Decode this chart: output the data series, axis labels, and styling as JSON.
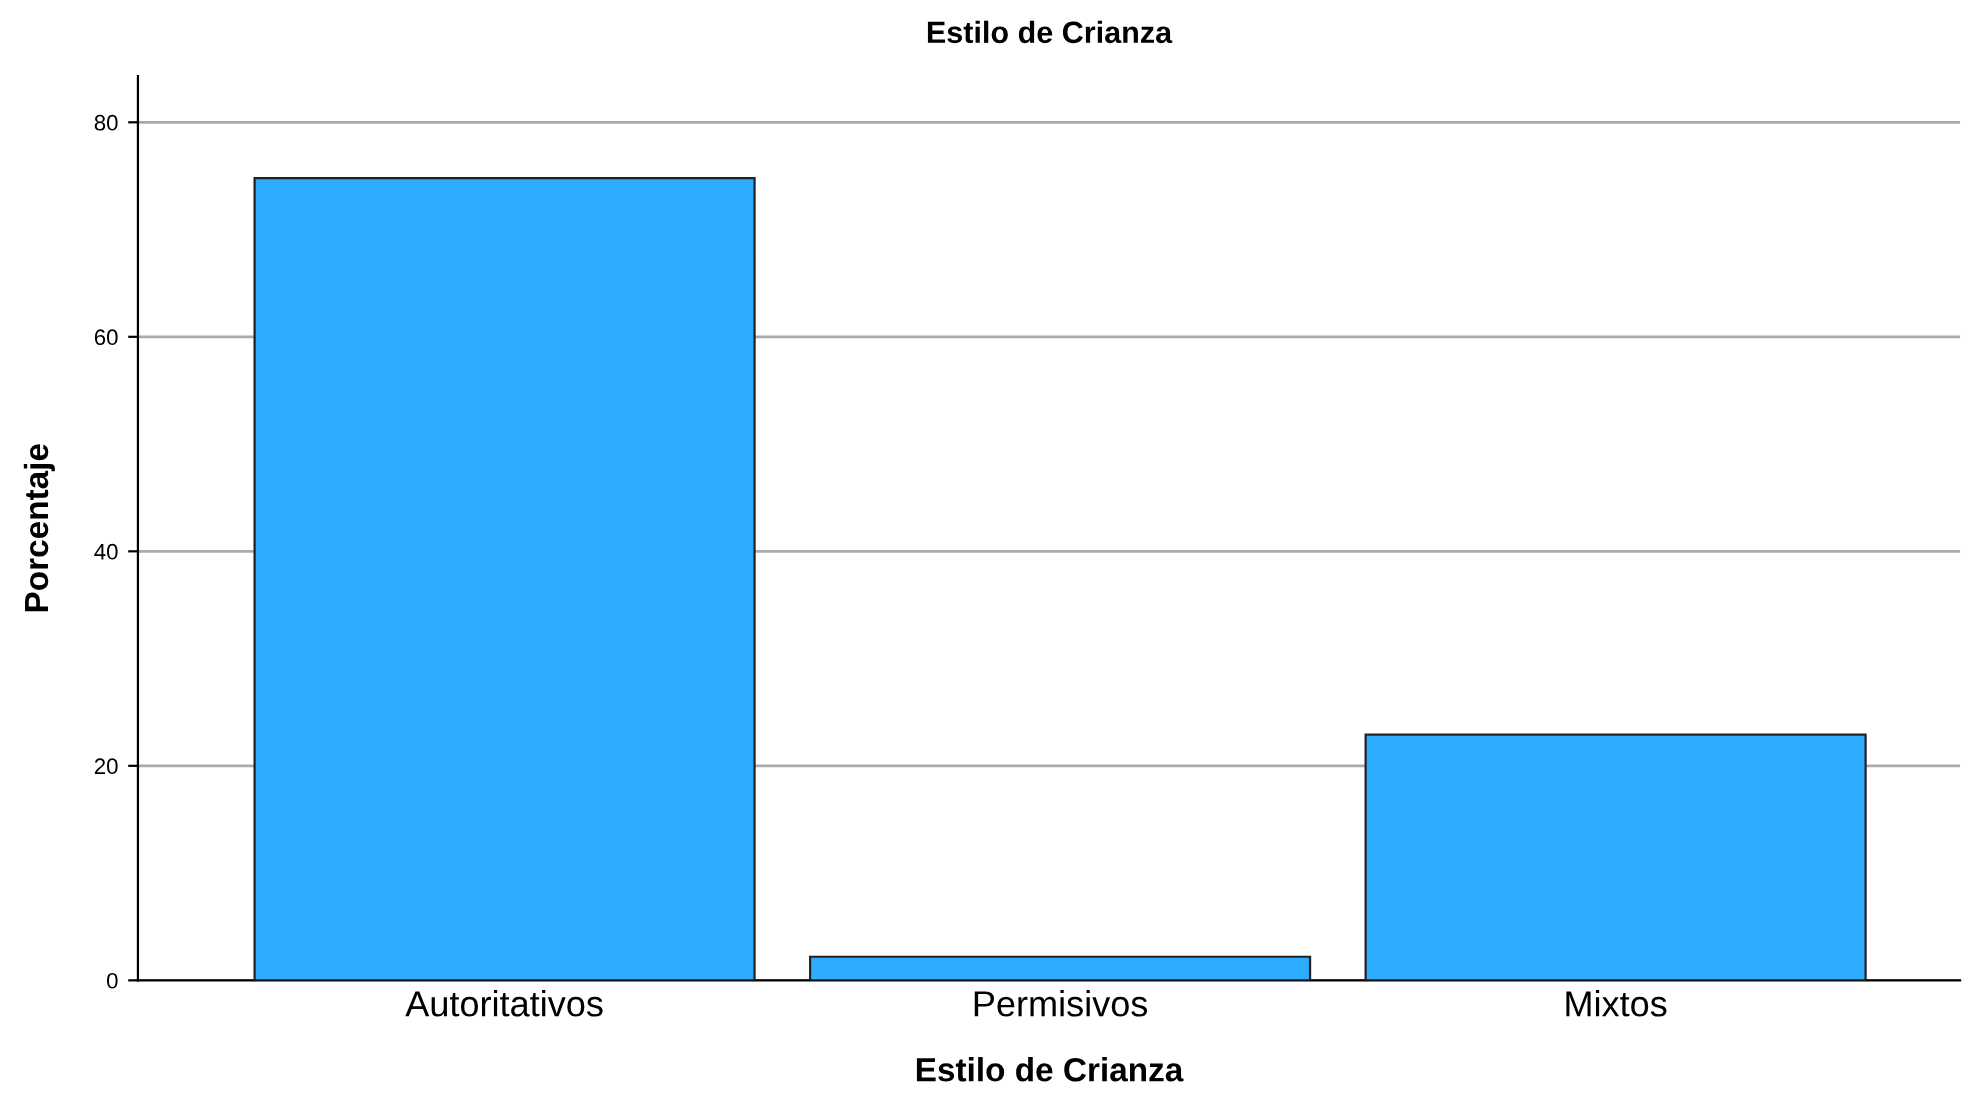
{
  "chart_data": {
    "type": "bar",
    "title": "Estilo de Crianza",
    "xlabel": "Estilo de Crianza",
    "ylabel": "Porcentaje",
    "categories": [
      "Autoritativos",
      "Permisivos",
      "Mixtos"
    ],
    "values": [
      74.8,
      2.2,
      22.9
    ],
    "color": "#2eacff",
    "ylim": [
      0,
      84.3
    ],
    "yticks": [
      0,
      20,
      40,
      60,
      80
    ],
    "grid": "y"
  }
}
